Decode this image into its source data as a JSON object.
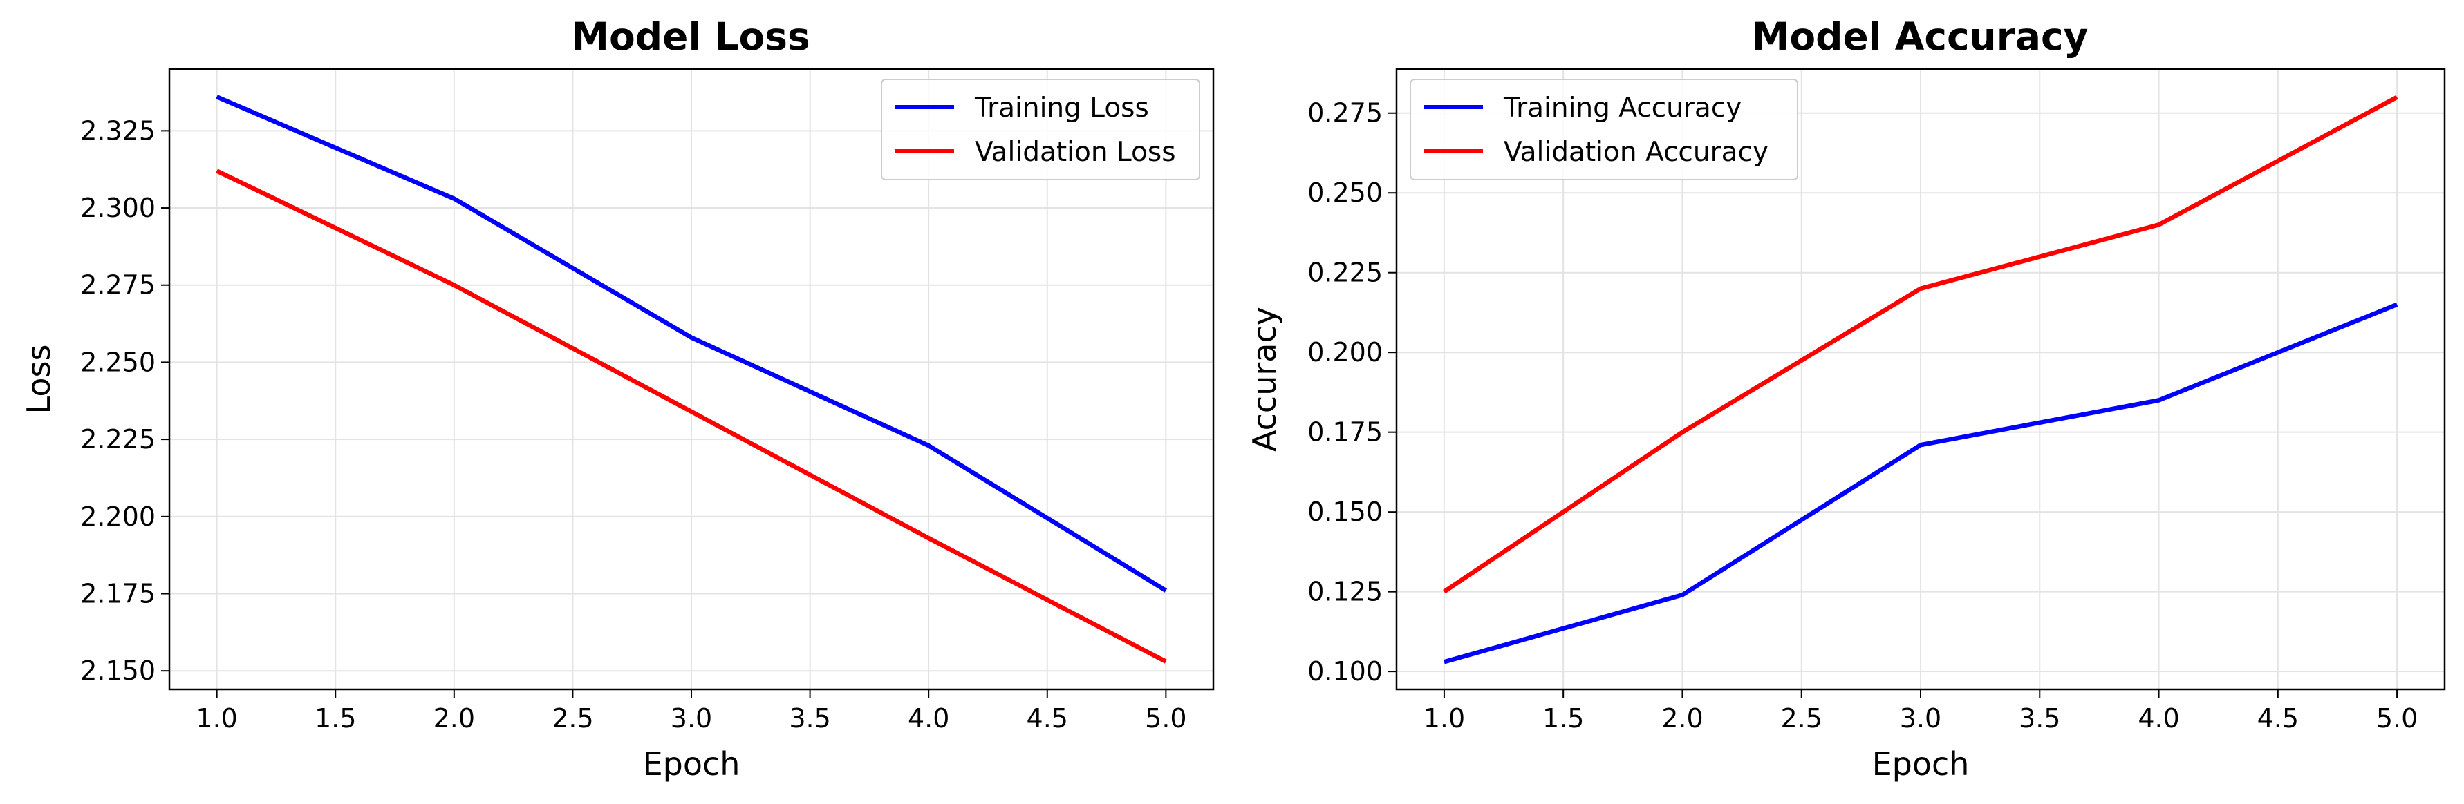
{
  "chart_data": [
    {
      "type": "line",
      "title": "Model Loss",
      "xlabel": "Epoch",
      "ylabel": "Loss",
      "x": [
        1.0,
        2.0,
        3.0,
        4.0,
        5.0
      ],
      "xlim": [
        0.8,
        5.2
      ],
      "ylim": [
        2.144,
        2.345
      ],
      "xticks": [
        1.0,
        1.5,
        2.0,
        2.5,
        3.0,
        3.5,
        4.0,
        4.5,
        5.0
      ],
      "xtick_labels": [
        "1.0",
        "1.5",
        "2.0",
        "2.5",
        "3.0",
        "3.5",
        "4.0",
        "4.5",
        "5.0"
      ],
      "yticks": [
        2.15,
        2.175,
        2.2,
        2.225,
        2.25,
        2.275,
        2.3,
        2.325
      ],
      "ytick_labels": [
        "2.150",
        "2.175",
        "2.200",
        "2.225",
        "2.250",
        "2.275",
        "2.300",
        "2.325"
      ],
      "grid": true,
      "legend_position": "upper right",
      "series": [
        {
          "name": "Training Loss",
          "color": "#0000ff",
          "values": [
            2.336,
            2.303,
            2.258,
            2.223,
            2.176
          ]
        },
        {
          "name": "Validation Loss",
          "color": "#ff0000",
          "values": [
            2.312,
            2.275,
            2.234,
            2.193,
            2.153
          ]
        }
      ]
    },
    {
      "type": "line",
      "title": "Model Accuracy",
      "xlabel": "Epoch",
      "ylabel": "Accuracy",
      "x": [
        1.0,
        2.0,
        3.0,
        4.0,
        5.0
      ],
      "xlim": [
        0.8,
        5.2
      ],
      "ylim": [
        0.0944,
        0.2888
      ],
      "xticks": [
        1.0,
        1.5,
        2.0,
        2.5,
        3.0,
        3.5,
        4.0,
        4.5,
        5.0
      ],
      "xtick_labels": [
        "1.0",
        "1.5",
        "2.0",
        "2.5",
        "3.0",
        "3.5",
        "4.0",
        "4.5",
        "5.0"
      ],
      "yticks": [
        0.1,
        0.125,
        0.15,
        0.175,
        0.2,
        0.225,
        0.25,
        0.275
      ],
      "ytick_labels": [
        "0.100",
        "0.125",
        "0.150",
        "0.175",
        "0.200",
        "0.225",
        "0.250",
        "0.275"
      ],
      "grid": true,
      "legend_position": "upper left",
      "series": [
        {
          "name": "Training Accuracy",
          "color": "#0000ff",
          "values": [
            0.103,
            0.124,
            0.171,
            0.185,
            0.215
          ]
        },
        {
          "name": "Validation Accuracy",
          "color": "#ff0000",
          "values": [
            0.125,
            0.175,
            0.22,
            0.24,
            0.28
          ]
        }
      ]
    }
  ]
}
